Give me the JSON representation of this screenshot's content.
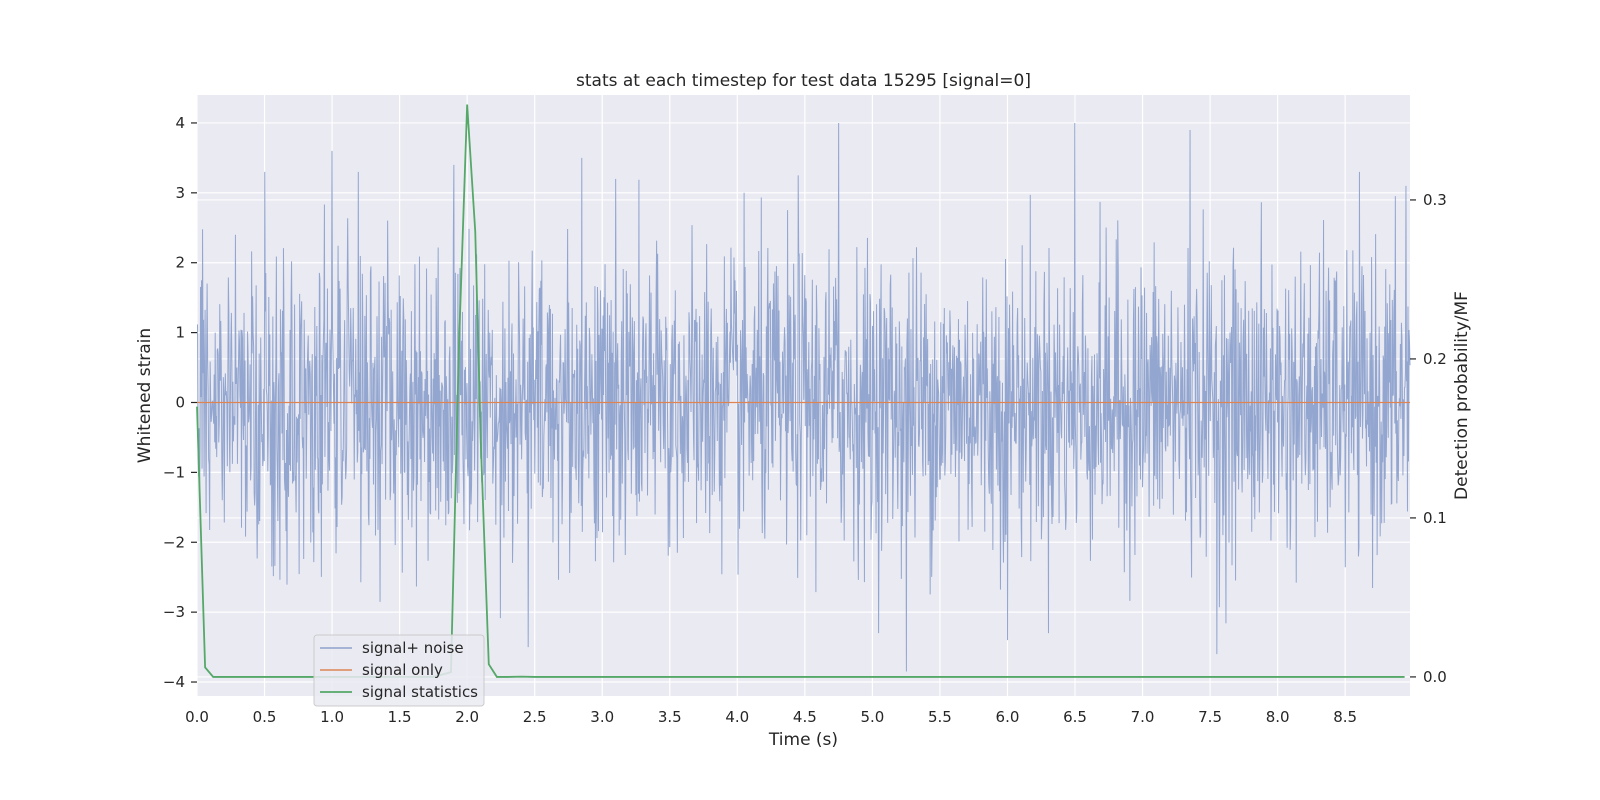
{
  "chart_data": {
    "type": "line",
    "title": "stats at each timestep for test data 15295 [signal=0]",
    "xlabel": "Time (s)",
    "ylabel": "Whitened strain",
    "y2label": "Detection probability/MF",
    "xlim": [
      0.0,
      8.98
    ],
    "ylim": [
      -4.2,
      4.4
    ],
    "y2lim": [
      -0.012,
      0.366
    ],
    "x_ticks": [
      0.0,
      0.5,
      1.0,
      1.5,
      2.0,
      2.5,
      3.0,
      3.5,
      4.0,
      4.5,
      5.0,
      5.5,
      6.0,
      6.5,
      7.0,
      7.5,
      8.0,
      8.5
    ],
    "x_tick_labels": [
      "0.0",
      "0.5",
      "1.0",
      "1.5",
      "2.0",
      "2.5",
      "3.0",
      "3.5",
      "4.0",
      "4.5",
      "5.0",
      "5.5",
      "6.0",
      "6.5",
      "7.0",
      "7.5",
      "8.0",
      "8.5"
    ],
    "y_ticks": [
      -4,
      -3,
      -2,
      -1,
      0,
      1,
      2,
      3,
      4
    ],
    "y_tick_labels": [
      "−4",
      "−3",
      "−2",
      "−1",
      "0",
      "1",
      "2",
      "3",
      "4"
    ],
    "y2_ticks": [
      0.0,
      0.1,
      0.2,
      0.3
    ],
    "y2_tick_labels": [
      "0.0",
      "0.1",
      "0.2",
      "0.3"
    ],
    "grid": true,
    "legend_position": "lower-left",
    "colors": {
      "background": "#eaeaf2",
      "grid": "#ffffff",
      "signal_noise": "#8ea2cd",
      "signal_only": "#dd8452",
      "signal_statistics": "#55a868"
    },
    "series": [
      {
        "name": "signal+ noise",
        "axis": "left",
        "description_values": "whitened strain samples, roughly Gaussian noise with std ~1, range approx -3.9 to 4.0",
        "peaks": [
          {
            "x": 0.5,
            "y": 3.3
          },
          {
            "x": 1.0,
            "y": 3.6
          },
          {
            "x": 1.9,
            "y": 3.4
          },
          {
            "x": 2.85,
            "y": 3.5
          },
          {
            "x": 3.1,
            "y": 3.2
          },
          {
            "x": 4.45,
            "y": 3.25
          },
          {
            "x": 4.75,
            "y": 4.0
          },
          {
            "x": 6.5,
            "y": 4.0
          },
          {
            "x": 7.35,
            "y": 3.9
          },
          {
            "x": 8.95,
            "y": 3.1
          },
          {
            "x": 5.25,
            "y": -3.85
          },
          {
            "x": 2.45,
            "y": -3.5
          },
          {
            "x": 7.55,
            "y": -3.6
          },
          {
            "x": 6.0,
            "y": -3.4
          }
        ]
      },
      {
        "name": "signal only",
        "axis": "left",
        "x": [
          0.0,
          8.98
        ],
        "y": [
          0.0,
          0.0
        ]
      },
      {
        "name": "signal statistics",
        "axis": "right",
        "x": [
          0.0,
          0.06,
          0.12,
          0.2,
          0.3,
          0.5,
          0.75,
          1.0,
          1.25,
          1.5,
          1.75,
          1.88,
          1.94,
          2.0,
          2.06,
          2.1,
          2.16,
          2.22,
          2.3,
          2.4,
          2.5,
          3.0,
          4.0,
          5.0,
          6.0,
          7.0,
          8.0,
          8.94
        ],
        "y": [
          0.17,
          0.006,
          0.0,
          0.0,
          0.0,
          0.0,
          0.0,
          0.0,
          0.0,
          0.0,
          0.0,
          0.003,
          0.21,
          0.36,
          0.28,
          0.15,
          0.008,
          0.0,
          0.0,
          0.0002,
          0.0,
          0.0,
          0.0,
          0.0,
          0.0,
          0.0,
          0.0,
          0.0
        ]
      }
    ]
  }
}
